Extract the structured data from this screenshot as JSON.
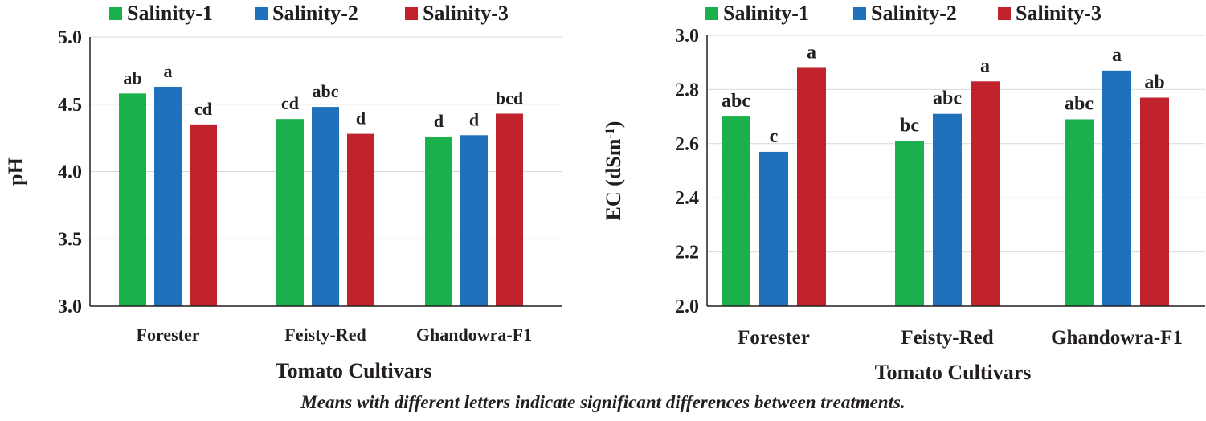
{
  "colors": {
    "Salinity-1": "#1ab04b",
    "Salinity-2": "#1f71bc",
    "Salinity-3": "#c1232d",
    "axis": "#231f20",
    "grid": "#d9d9d9"
  },
  "chart_data": [
    {
      "type": "bar",
      "categories": [
        "Forester",
        "Feisty-Red",
        "Ghandowra-F1"
      ],
      "series": [
        {
          "name": "Salinity-1",
          "values": [
            4.58,
            4.39,
            4.26
          ],
          "labels": [
            "ab",
            "cd",
            "d"
          ]
        },
        {
          "name": "Salinity-2",
          "values": [
            4.63,
            4.48,
            4.27
          ],
          "labels": [
            "a",
            "abc",
            "d"
          ]
        },
        {
          "name": "Salinity-3",
          "values": [
            4.35,
            4.28,
            4.43
          ],
          "labels": [
            "cd",
            "d",
            "bcd"
          ]
        }
      ],
      "xlabel": "Tomato Cultivars",
      "ylabel": "pH",
      "ylim": [
        3.0,
        5.0
      ],
      "yticks": [
        "3.0",
        "3.5",
        "4.0",
        "4.5",
        "5.0"
      ],
      "grid": true,
      "legend": "top"
    },
    {
      "type": "bar",
      "categories": [
        "Forester",
        "Feisty-Red",
        "Ghandowra-F1"
      ],
      "series": [
        {
          "name": "Salinity-1",
          "values": [
            2.7,
            2.61,
            2.69
          ],
          "labels": [
            "abc",
            "bc",
            "abc"
          ]
        },
        {
          "name": "Salinity-2",
          "values": [
            2.57,
            2.71,
            2.87
          ],
          "labels": [
            "c",
            "abc",
            "a"
          ]
        },
        {
          "name": "Salinity-3",
          "values": [
            2.88,
            2.83,
            2.77
          ],
          "labels": [
            "a",
            "a",
            "ab"
          ]
        }
      ],
      "xlabel": "Tomato Cultivars",
      "ylabel": "EC (dSm",
      "ylabel_sup": "-1",
      "ylabel_end": ")",
      "ylim": [
        2.0,
        3.0
      ],
      "yticks": [
        "2.0",
        "2.2",
        "2.4",
        "2.6",
        "2.8",
        "3.0"
      ],
      "grid": true,
      "legend": "top"
    }
  ],
  "footnote": "Means with different letters indicate significant differences between treatments."
}
